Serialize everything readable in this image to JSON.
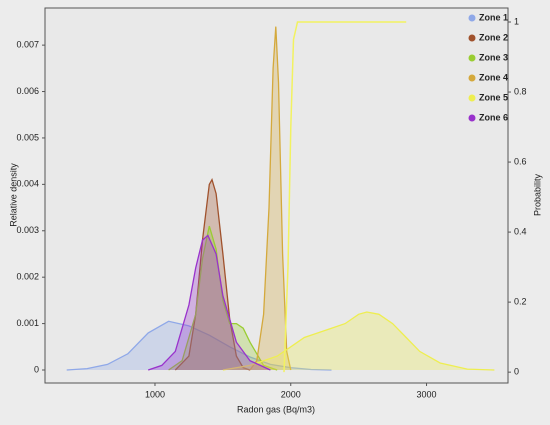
{
  "chart_data": {
    "type": "density",
    "xlabel": "Radon gas (Bq/m3)",
    "ylabel": "Relative density",
    "y2label": "Probability",
    "xlim": [
      190,
      3600
    ],
    "xticks": [
      1000,
      2000,
      3000
    ],
    "ylim": [
      -0.00028,
      0.0078
    ],
    "yticks": [
      0,
      0.001,
      0.002,
      0.003,
      0.004,
      0.005,
      0.006,
      0.007
    ],
    "y2lim": [
      -0.031,
      1.04
    ],
    "y2ticks": [
      0,
      0.2,
      0.4,
      0.6,
      0.8,
      1
    ],
    "legend": "upper right",
    "series": [
      {
        "name": "Zone 1",
        "color": "#8fa8e8",
        "x": [
          350,
          500,
          650,
          800,
          950,
          1100,
          1250,
          1400,
          1550,
          1700,
          1850,
          2000,
          2150,
          2300
        ],
        "values": [
          0,
          3e-05,
          0.00012,
          0.00035,
          0.0008,
          0.00105,
          0.00095,
          0.00075,
          0.0005,
          0.00028,
          0.00012,
          5e-05,
          1e-05,
          0
        ]
      },
      {
        "name": "Zone 2",
        "color": "#a0522d",
        "x": [
          1150,
          1250,
          1300,
          1350,
          1400,
          1420,
          1450,
          1500,
          1550,
          1600,
          1650,
          1700
        ],
        "values": [
          0,
          0.0003,
          0.0012,
          0.0028,
          0.004,
          0.0041,
          0.0038,
          0.0025,
          0.0011,
          0.0003,
          5e-05,
          0
        ]
      },
      {
        "name": "Zone 3",
        "color": "#9acd32",
        "x": [
          1100,
          1200,
          1300,
          1350,
          1400,
          1450,
          1500,
          1550,
          1600,
          1650,
          1700,
          1800,
          1900
        ],
        "values": [
          0,
          0.0002,
          0.0012,
          0.0024,
          0.0031,
          0.0026,
          0.0015,
          0.001,
          0.001,
          0.0009,
          0.0006,
          0.0001,
          0
        ]
      },
      {
        "name": "Zone 4",
        "color": "#d4a93c",
        "x": [
          1700,
          1750,
          1800,
          1840,
          1870,
          1890,
          1910,
          1940,
          1970,
          2000
        ],
        "values": [
          0,
          0.0002,
          0.0012,
          0.0035,
          0.0065,
          0.0074,
          0.0062,
          0.0025,
          0.0004,
          0
        ]
      },
      {
        "name": "Zone 5",
        "color": "#eeee50",
        "x": [
          1500,
          1700,
          1900,
          2000,
          2100,
          2200,
          2300,
          2400,
          2500,
          2560,
          2650,
          2750,
          2850,
          2950,
          3100,
          3300,
          3500
        ],
        "values": [
          0,
          0.0001,
          0.0003,
          0.0005,
          0.0007,
          0.0008,
          0.0009,
          0.001,
          0.0012,
          0.00125,
          0.0012,
          0.001,
          0.0007,
          0.0004,
          0.00015,
          2e-05,
          0
        ]
      },
      {
        "name": "Zone 6",
        "color": "#9932cc",
        "x": [
          950,
          1050,
          1150,
          1250,
          1300,
          1350,
          1390,
          1450,
          1500,
          1600,
          1700,
          1850
        ],
        "values": [
          0,
          0.0001,
          0.0004,
          0.0014,
          0.0022,
          0.0028,
          0.0029,
          0.0025,
          0.0016,
          0.0006,
          0.0002,
          0
        ]
      }
    ],
    "cumulative": {
      "axis": "y2",
      "color": "#f2f260",
      "x": [
        1950,
        1980,
        2000,
        2020,
        2050,
        2850
      ],
      "values": [
        0,
        0.3,
        0.7,
        0.95,
        1,
        1
      ]
    }
  }
}
